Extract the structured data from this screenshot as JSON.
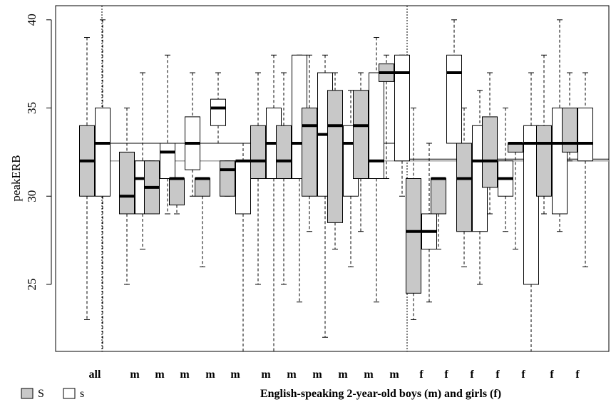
{
  "chart_data": {
    "type": "boxplot",
    "ylabel": "peakERB",
    "xlabel": "English-speaking 2-year-old boys (m) and girls (f)",
    "ylim": [
      21.2,
      40.8
    ],
    "yticks": [
      25,
      30,
      35,
      40
    ],
    "legend": {
      "placement": "bottom-left",
      "entries": [
        {
          "label": "S",
          "fill": "#c8c8c8"
        },
        {
          "label": "s",
          "fill": "#ffffff"
        }
      ]
    },
    "colors": {
      "S": "#c8c8c8",
      "s": "#ffffff"
    },
    "reference_lines": {
      "boys": {
        "S_median": 32.0,
        "s_median": 33.0
      },
      "girls": {
        "S_median": 32.0,
        "s_median": 32.1
      }
    },
    "groups": [
      {
        "label": "all",
        "S": {
          "min": 23.0,
          "q1": 30.0,
          "median": 32.0,
          "q3": 34.0,
          "max": 39.0
        },
        "s": {
          "min": 21.2,
          "q1": 30.0,
          "median": 33.0,
          "q3": 35.0,
          "max": 40.0
        }
      },
      {
        "label": "m",
        "S": {
          "min": 25.0,
          "q1": 29.0,
          "median": 30.0,
          "q3": 32.5,
          "max": 35.0
        },
        "s": {
          "min": 27.0,
          "q1": 29.0,
          "median": 31.0,
          "q3": 32.0,
          "max": 37.0
        }
      },
      {
        "label": "m",
        "S": {
          "min": 29.0,
          "q1": 29.0,
          "median": 30.5,
          "q3": 32.0,
          "max": 32.0
        },
        "s": {
          "min": 29.0,
          "q1": 31.0,
          "median": 32.5,
          "q3": 33.0,
          "max": 38.0
        }
      },
      {
        "label": "m",
        "S": {
          "min": 29.0,
          "q1": 29.5,
          "median": 31.0,
          "q3": 31.0,
          "max": 31.0
        },
        "s": {
          "min": 30.0,
          "q1": 31.5,
          "median": 33.0,
          "q3": 34.5,
          "max": 37.0
        }
      },
      {
        "label": "m",
        "S": {
          "min": 26.0,
          "q1": 30.0,
          "median": 31.0,
          "q3": 31.0,
          "max": 31.0
        },
        "s": {
          "min": 33.0,
          "q1": 34.0,
          "median": 35.0,
          "q3": 35.5,
          "max": 37.0
        }
      },
      {
        "label": "m",
        "S": {
          "min": 30.0,
          "q1": 30.0,
          "median": 31.5,
          "q3": 32.0,
          "max": 32.0
        },
        "s": {
          "min": 21.2,
          "q1": 29.0,
          "median": 32.0,
          "q3": 32.0,
          "max": 33.0
        }
      },
      {
        "label": "m",
        "S": {
          "min": 25.0,
          "q1": 31.0,
          "median": 32.0,
          "q3": 34.0,
          "max": 37.0
        },
        "s": {
          "min": 21.2,
          "q1": 31.0,
          "median": 33.0,
          "q3": 35.0,
          "max": 38.0
        }
      },
      {
        "label": "m",
        "S": {
          "min": 25.0,
          "q1": 31.0,
          "median": 32.0,
          "q3": 34.0,
          "max": 37.0
        },
        "s": {
          "min": 24.0,
          "q1": 31.0,
          "median": 33.0,
          "q3": 38.0,
          "max": 38.0
        }
      },
      {
        "label": "m",
        "S": {
          "min": 28.0,
          "q1": 30.0,
          "median": 34.0,
          "q3": 35.0,
          "max": 38.0
        },
        "s": {
          "min": 22.0,
          "q1": 30.0,
          "median": 33.5,
          "q3": 37.0,
          "max": 38.0
        }
      },
      {
        "label": "m",
        "S": {
          "min": 27.0,
          "q1": 28.5,
          "median": 34.0,
          "q3": 36.0,
          "max": 37.0
        },
        "s": {
          "min": 26.0,
          "q1": 30.0,
          "median": 33.0,
          "q3": 34.0,
          "max": 36.0
        }
      },
      {
        "label": "m",
        "S": {
          "min": 28.0,
          "q1": 31.0,
          "median": 34.0,
          "q3": 36.0,
          "max": 37.0
        },
        "s": {
          "min": 24.0,
          "q1": 31.0,
          "median": 32.0,
          "q3": 37.0,
          "max": 39.0
        }
      },
      {
        "label": "m",
        "S": {
          "min": 31.0,
          "q1": 36.5,
          "median": 37.0,
          "q3": 37.5,
          "max": 38.0
        },
        "s": {
          "min": 30.0,
          "q1": 32.0,
          "median": 37.0,
          "q3": 38.0,
          "max": 38.0
        }
      },
      {
        "label": "f",
        "S": {
          "min": 23.0,
          "q1": 24.5,
          "median": 28.0,
          "q3": 31.0,
          "max": 35.0
        },
        "s": {
          "min": 24.0,
          "q1": 27.0,
          "median": 28.0,
          "q3": 29.0,
          "max": 33.0
        }
      },
      {
        "label": "f",
        "S": {
          "min": 27.0,
          "q1": 29.0,
          "median": 31.0,
          "q3": 31.0,
          "max": 31.0
        },
        "s": {
          "min": 33.0,
          "q1": 33.0,
          "median": 37.0,
          "q3": 38.0,
          "max": 40.0
        }
      },
      {
        "label": "f",
        "S": {
          "min": 26.0,
          "q1": 28.0,
          "median": 31.0,
          "q3": 33.0,
          "max": 35.0
        },
        "s": {
          "min": 25.0,
          "q1": 28.0,
          "median": 32.0,
          "q3": 34.0,
          "max": 36.0
        }
      },
      {
        "label": "f",
        "S": {
          "min": 29.0,
          "q1": 30.5,
          "median": 32.0,
          "q3": 34.5,
          "max": 37.0
        },
        "s": {
          "min": 28.0,
          "q1": 30.0,
          "median": 31.0,
          "q3": 32.0,
          "max": 35.0
        }
      },
      {
        "label": "f",
        "S": {
          "min": 27.0,
          "q1": 32.5,
          "median": 33.0,
          "q3": 33.0,
          "max": 33.0
        },
        "s": {
          "min": 21.2,
          "q1": 25.0,
          "median": 33.0,
          "q3": 34.0,
          "max": 37.0
        }
      },
      {
        "label": "f",
        "S": {
          "min": 29.0,
          "q1": 30.0,
          "median": 33.0,
          "q3": 34.0,
          "max": 38.0
        },
        "s": {
          "min": 28.0,
          "q1": 29.0,
          "median": 33.0,
          "q3": 35.0,
          "max": 40.0
        }
      },
      {
        "label": "f",
        "S": {
          "min": 32.0,
          "q1": 32.5,
          "median": 33.0,
          "q3": 35.0,
          "max": 37.0
        },
        "s": {
          "min": 26.0,
          "q1": 32.0,
          "median": 33.0,
          "q3": 35.0,
          "max": 37.0
        }
      }
    ]
  }
}
